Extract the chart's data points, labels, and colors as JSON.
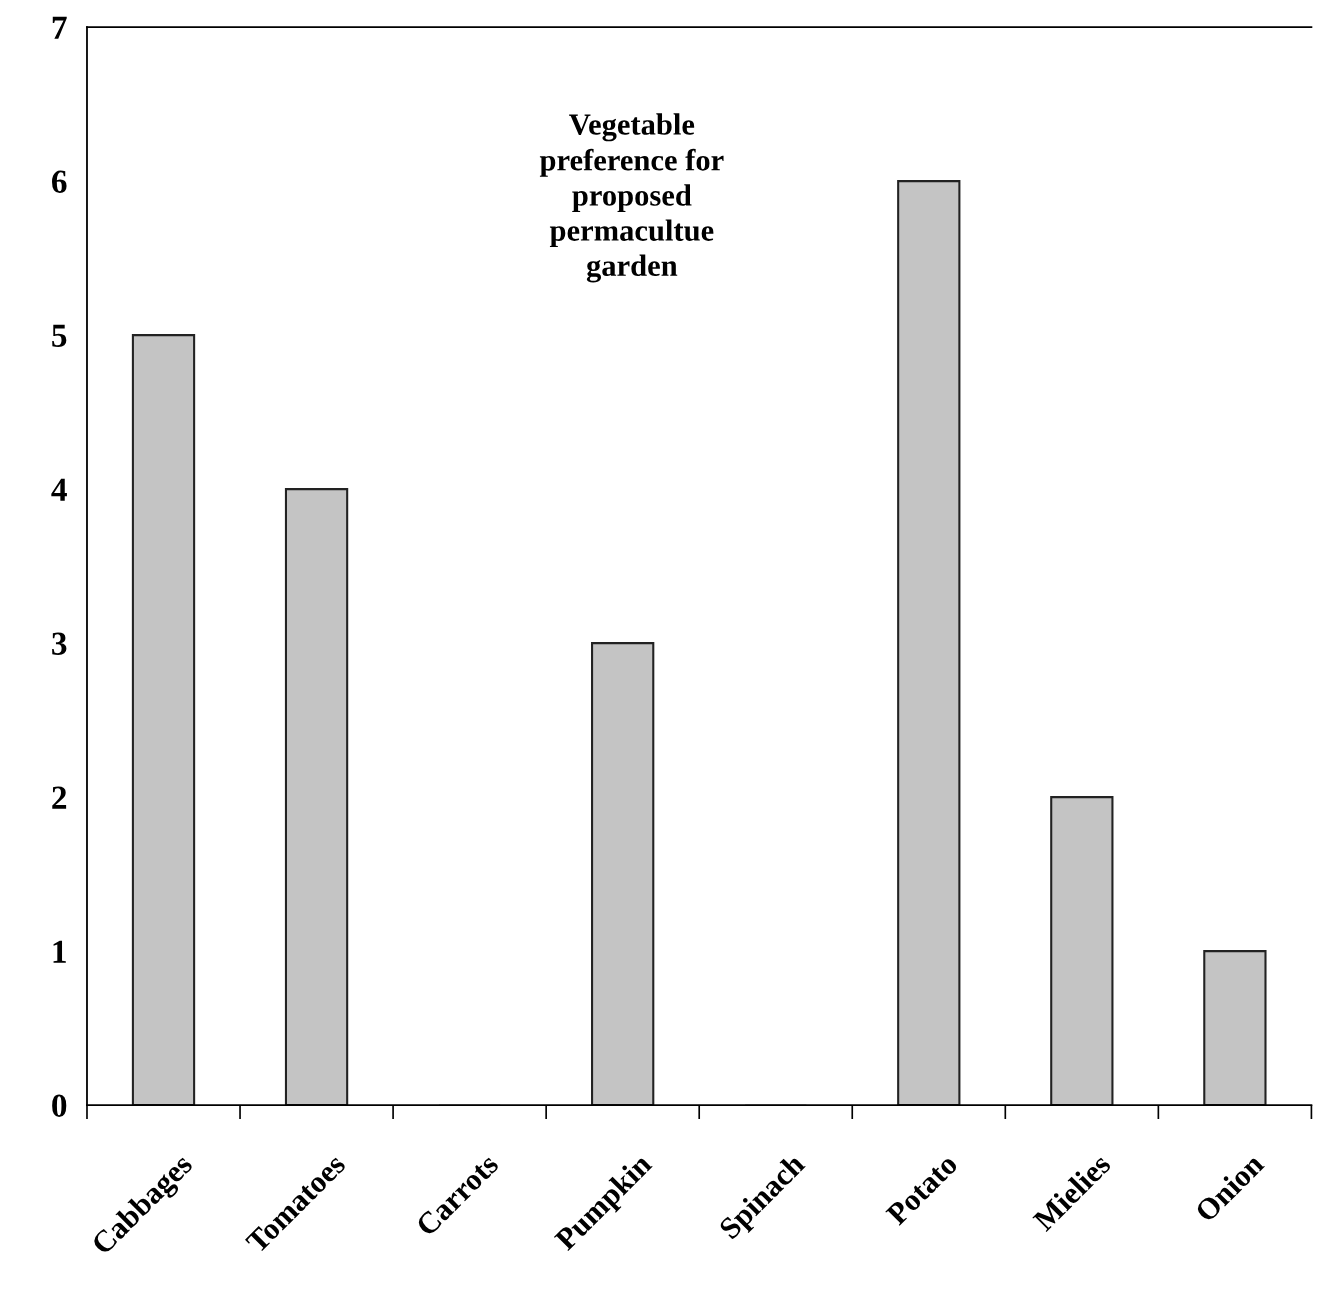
{
  "chart_data": {
    "type": "bar",
    "title": "Vegetable\npreference for\nproposed\npermacultue\ngarden",
    "categories": [
      "Cabbages",
      "Tomatoes",
      "Carrots",
      "Pumpkin",
      "Spinach",
      "Potato",
      "Mielies",
      "Onion"
    ],
    "values": [
      5,
      4,
      0,
      3,
      0,
      6,
      2,
      1
    ],
    "color": "#c4c4c4",
    "ylim": [
      0,
      7
    ],
    "yticks": [
      0,
      1,
      2,
      3,
      4,
      5,
      6,
      7
    ],
    "grid": false
  }
}
